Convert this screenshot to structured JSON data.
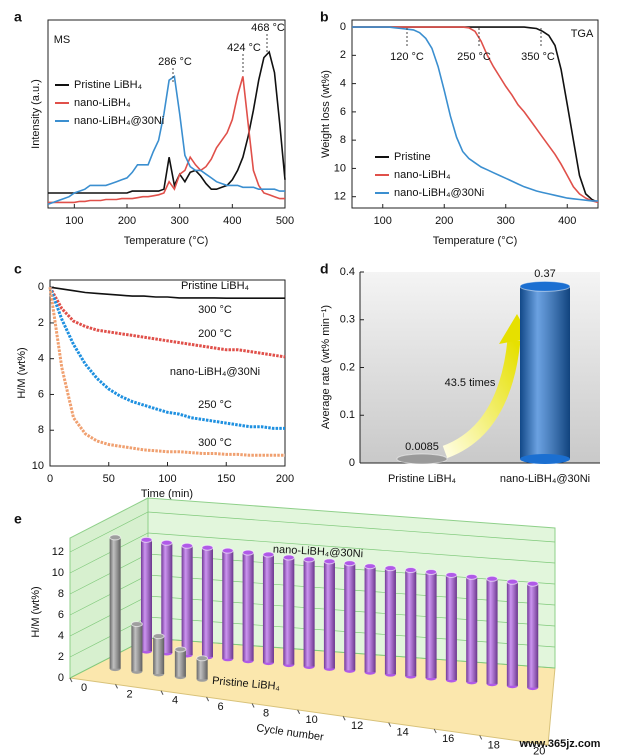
{
  "chart_data": [
    {
      "panel": "a",
      "type": "line",
      "annotations": [
        "MS",
        "286 °C",
        "424 °C",
        "468 °C"
      ],
      "xlabel": "Temperature (°C)",
      "ylabel": "Intensity (a.u.)",
      "x": [
        50,
        60,
        70,
        80,
        90,
        100,
        110,
        120,
        130,
        140,
        150,
        160,
        170,
        180,
        190,
        200,
        210,
        220,
        230,
        240,
        250,
        260,
        270,
        280,
        290,
        300,
        310,
        320,
        330,
        340,
        350,
        360,
        370,
        380,
        390,
        400,
        410,
        420,
        430,
        440,
        450,
        460,
        470,
        480,
        490,
        500
      ],
      "xlim": [
        50,
        500
      ],
      "xticks": [
        100,
        200,
        300,
        400,
        500
      ],
      "ylim": [
        0,
        1
      ],
      "series": [
        {
          "name": "Pristine LiBH₄",
          "color": "#111111",
          "values": [
            0.08,
            0.08,
            0.08,
            0.08,
            0.08,
            0.08,
            0.08,
            0.08,
            0.08,
            0.08,
            0.08,
            0.08,
            0.08,
            0.08,
            0.08,
            0.08,
            0.09,
            0.09,
            0.09,
            0.09,
            0.09,
            0.09,
            0.1,
            0.27,
            0.12,
            0.18,
            0.14,
            0.19,
            0.2,
            0.17,
            0.13,
            0.1,
            0.1,
            0.11,
            0.12,
            0.15,
            0.2,
            0.27,
            0.38,
            0.52,
            0.68,
            0.8,
            0.83,
            0.72,
            0.45,
            0.15
          ]
        },
        {
          "name": "nano-LiBH₄",
          "color": "#e0504a",
          "values": [
            0.03,
            0.03,
            0.03,
            0.03,
            0.03,
            0.03,
            0.035,
            0.035,
            0.04,
            0.04,
            0.04,
            0.045,
            0.045,
            0.045,
            0.05,
            0.05,
            0.05,
            0.055,
            0.06,
            0.06,
            0.065,
            0.07,
            0.08,
            0.14,
            0.1,
            0.18,
            0.2,
            0.27,
            0.23,
            0.2,
            0.22,
            0.26,
            0.32,
            0.36,
            0.4,
            0.47,
            0.6,
            0.7,
            0.45,
            0.2,
            0.12,
            0.08,
            0.07,
            0.06,
            0.05,
            0.05
          ]
        },
        {
          "name": "nano-LiBH₄@30Ni",
          "color": "#3b8fd0",
          "values": [
            0.02,
            0.03,
            0.04,
            0.05,
            0.06,
            0.08,
            0.09,
            0.1,
            0.12,
            0.12,
            0.12,
            0.12,
            0.13,
            0.14,
            0.15,
            0.16,
            0.19,
            0.23,
            0.23,
            0.23,
            0.3,
            0.36,
            0.5,
            0.68,
            0.7,
            0.5,
            0.28,
            0.22,
            0.2,
            0.2,
            0.18,
            0.16,
            0.14,
            0.13,
            0.12,
            0.12,
            0.12,
            0.11,
            0.11,
            0.11,
            0.1,
            0.1,
            0.1,
            0.1,
            0.09,
            0.09
          ]
        }
      ]
    },
    {
      "panel": "b",
      "type": "line",
      "annotations": [
        "TGA",
        "120 °C",
        "250 °C",
        "350 °C"
      ],
      "xlabel": "Temperature (°C)",
      "ylabel": "Weight loss (wt%)",
      "x": [
        50,
        60,
        70,
        80,
        90,
        100,
        110,
        120,
        130,
        140,
        150,
        160,
        170,
        180,
        190,
        200,
        210,
        220,
        230,
        240,
        250,
        260,
        270,
        280,
        290,
        300,
        310,
        320,
        330,
        340,
        350,
        360,
        370,
        380,
        390,
        400,
        410,
        420,
        430,
        440,
        450
      ],
      "xlim": [
        50,
        450
      ],
      "xticks": [
        100,
        200,
        300,
        400
      ],
      "ylim": [
        12.8,
        -0.5
      ],
      "yticks": [
        0,
        2,
        4,
        6,
        8,
        10,
        12
      ],
      "series": [
        {
          "name": "Pristine",
          "color": "#111111",
          "values": [
            0,
            0,
            0,
            0,
            0,
            0,
            0,
            0,
            0,
            0,
            0,
            0,
            0,
            0,
            0,
            0,
            0,
            0,
            0,
            0,
            0,
            0,
            0,
            0,
            0,
            0,
            0,
            0,
            0,
            0.05,
            0.1,
            0.3,
            0.6,
            1.3,
            3,
            5.5,
            8,
            10.5,
            11.8,
            12.2,
            12.4
          ]
        },
        {
          "name": "nano-LiBH₄",
          "color": "#e0504a",
          "values": [
            0,
            0,
            0,
            0,
            0,
            0,
            0,
            0,
            0,
            0,
            0,
            0,
            0,
            0,
            0,
            0,
            0,
            0,
            0,
            0.05,
            0.3,
            1,
            2,
            2.8,
            3.5,
            4.2,
            4.8,
            5.5,
            6,
            6.6,
            7.2,
            7.8,
            8.4,
            9,
            9.7,
            10.5,
            11.3,
            11.8,
            12.1,
            12.3,
            12.4
          ]
        },
        {
          "name": "nano-LiBH₄@30Ni",
          "color": "#3b8fd0",
          "values": [
            0,
            0,
            0,
            0,
            0,
            0,
            0,
            0.05,
            0.1,
            0.15,
            0.2,
            0.4,
            0.8,
            1.5,
            2.8,
            4.5,
            6.3,
            7.8,
            8.8,
            9.3,
            9.6,
            9.9,
            10.1,
            10.3,
            10.5,
            10.7,
            10.9,
            11.1,
            11.3,
            11.45,
            11.6,
            11.7,
            11.8,
            11.9,
            12,
            12.1,
            12.15,
            12.2,
            12.25,
            12.3,
            12.3
          ]
        }
      ]
    },
    {
      "panel": "c",
      "type": "line",
      "annotations": [
        "Pristine LiBH₄",
        "nano-LiBH₄@30Ni"
      ],
      "xlabel": "Time (min)",
      "ylabel": "H/M (wt%)",
      "x": [
        0,
        10,
        20,
        30,
        40,
        50,
        60,
        70,
        80,
        90,
        100,
        110,
        120,
        130,
        140,
        150,
        160,
        170,
        180,
        190,
        200
      ],
      "xlim": [
        0,
        200
      ],
      "xticks": [
        0,
        50,
        100,
        150,
        200
      ],
      "ylim": [
        10,
        -0.4
      ],
      "yticks": [
        0,
        2,
        4,
        6,
        8,
        10
      ],
      "series": [
        {
          "name": "300 °C",
          "color": "#111111",
          "values": [
            0,
            0.1,
            0.2,
            0.3,
            0.35,
            0.4,
            0.45,
            0.5,
            0.5,
            0.55,
            0.55,
            0.6,
            0.6,
            0.6,
            0.6,
            0.62,
            0.62,
            0.62,
            0.62,
            0.62,
            0.62
          ]
        },
        {
          "name": "200 °C",
          "color": "#e0504a",
          "values": [
            0,
            1.2,
            1.9,
            2.2,
            2.4,
            2.5,
            2.6,
            2.7,
            2.8,
            2.9,
            3.0,
            3.1,
            3.2,
            3.3,
            3.4,
            3.5,
            3.5,
            3.6,
            3.7,
            3.8,
            3.9
          ]
        },
        {
          "name": "250 °C",
          "color": "#1e90e0",
          "values": [
            0,
            1.8,
            3.2,
            4.3,
            5.1,
            5.7,
            6.1,
            6.4,
            6.6,
            6.8,
            7.0,
            7.1,
            7.3,
            7.4,
            7.5,
            7.6,
            7.7,
            7.8,
            7.8,
            7.9,
            7.9
          ]
        },
        {
          "name": "300 °C",
          "color": "#f0a070",
          "values": [
            0,
            4.5,
            7.3,
            8.2,
            8.6,
            8.8,
            8.9,
            9.0,
            9.1,
            9.15,
            9.2,
            9.2,
            9.25,
            9.3,
            9.3,
            9.35,
            9.35,
            9.4,
            9.4,
            9.4,
            9.4
          ]
        }
      ]
    },
    {
      "panel": "d",
      "type": "bar",
      "annotations": [
        "43.5 times"
      ],
      "ylabel": "Average rate (wt% min⁻¹)",
      "categories": [
        "Pristine LiBH₄",
        "nano-LiBH₄@30Ni"
      ],
      "values": [
        0.0085,
        0.37
      ],
      "colors": [
        "#9a9a9a",
        "#1b6fd1"
      ],
      "ylim": [
        0,
        0.4
      ],
      "yticks": [
        0,
        0.1,
        0.2,
        0.3,
        0.4
      ]
    },
    {
      "panel": "e",
      "type": "bar3d",
      "xlabel": "Cycle number",
      "ylabel": "H/M (wt%)",
      "xlim": [
        0,
        21
      ],
      "xticks": [
        0,
        2,
        4,
        6,
        8,
        10,
        12,
        14,
        16,
        18,
        20
      ],
      "ylim": [
        0,
        12
      ],
      "yticks": [
        0,
        2,
        4,
        6,
        8,
        10,
        12
      ],
      "series": [
        {
          "name": "nano-LiBH₄@30Ni",
          "color": "#b05ae8",
          "x": [
            1,
            2,
            3,
            4,
            5,
            6,
            7,
            8,
            9,
            10,
            11,
            12,
            13,
            14,
            15,
            16,
            17,
            18,
            19,
            20
          ],
          "values": [
            10.6,
            10.5,
            10.4,
            10.4,
            10.3,
            10.3,
            10.3,
            10.2,
            10.2,
            10.2,
            10.2,
            10.1,
            10.1,
            10.1,
            10.1,
            10.0,
            10.0,
            10.0,
            9.9,
            9.9
          ]
        },
        {
          "name": "Pristine LiBH₄",
          "color": "#9e9e9e",
          "x": [
            1,
            2,
            3,
            4,
            5
          ],
          "values": [
            12.5,
            4.5,
            3.6,
            2.6,
            2.0
          ]
        }
      ]
    },
    {
      "type": "text",
      "watermark": "www.365jz.com"
    }
  ]
}
